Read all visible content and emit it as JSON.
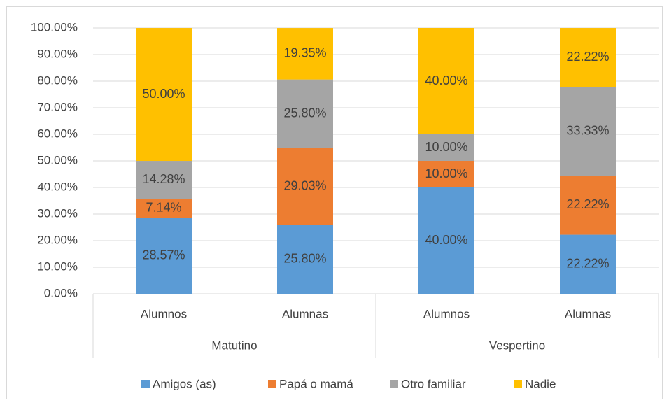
{
  "chart_data": {
    "type": "stacked_bar",
    "groups": [
      {
        "name": "Matutino",
        "categories": [
          "Alumnos",
          "Alumnas"
        ]
      },
      {
        "name": "Vespertino",
        "categories": [
          "Alumnos",
          "Alumnas"
        ]
      }
    ],
    "series": [
      {
        "name": "Amigos (as)",
        "color": "#5b9bd5",
        "values": [
          28.57,
          25.8,
          40.0,
          22.22
        ],
        "value_labels": [
          "28.57%",
          "25.80%",
          "40.00%",
          "22.22%"
        ]
      },
      {
        "name": "Papá o mamá",
        "color": "#ed7d31",
        "values": [
          7.14,
          29.03,
          10.0,
          22.22
        ],
        "value_labels": [
          "7.14%",
          "29.03%",
          "10.00%",
          "22.22%"
        ]
      },
      {
        "name": "Otro familiar",
        "color": "#a5a5a5",
        "values": [
          14.28,
          25.8,
          10.0,
          33.33
        ],
        "value_labels": [
          "14.28%",
          "25.80%",
          "10.00%",
          "33.33%"
        ]
      },
      {
        "name": "Nadie",
        "color": "#ffc000",
        "values": [
          50.0,
          19.35,
          40.0,
          22.22
        ],
        "value_labels": [
          "50.00%",
          "19.35%",
          "40.00%",
          "22.22%"
        ]
      }
    ],
    "ylim": [
      0,
      100
    ],
    "yticks": [
      {
        "value": 0,
        "label": "0.00%"
      },
      {
        "value": 10,
        "label": "10.00%"
      },
      {
        "value": 20,
        "label": "20.00%"
      },
      {
        "value": 30,
        "label": "30.00%"
      },
      {
        "value": 40,
        "label": "40.00%"
      },
      {
        "value": 50,
        "label": "50.00%"
      },
      {
        "value": 60,
        "label": "60.00%"
      },
      {
        "value": 70,
        "label": "70.00%"
      },
      {
        "value": 80,
        "label": "80.00%"
      },
      {
        "value": 90,
        "label": "90.00%"
      },
      {
        "value": 100,
        "label": "100.00%"
      }
    ],
    "grid": true,
    "legend": "bottom"
  }
}
